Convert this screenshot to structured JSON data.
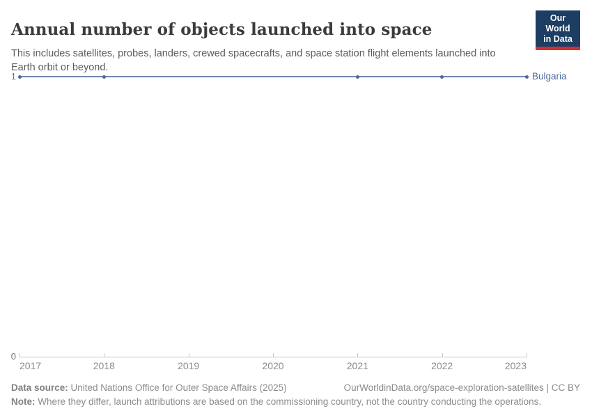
{
  "header": {
    "title": "Annual number of objects launched into space",
    "subtitle": "This includes satellites, probes, landers, crewed spacecrafts, and space station flight elements launched into Earth orbit or beyond.",
    "logo": {
      "line1": "Our World",
      "line2": "in Data"
    }
  },
  "chart_data": {
    "type": "line",
    "title": "Annual number of objects launched into space",
    "xlabel": "",
    "ylabel": "",
    "xlim": [
      2017,
      2023
    ],
    "ylim": [
      0,
      1
    ],
    "grid": false,
    "legend_position": "right-of-line-end",
    "x_ticks": [
      "2017",
      "2018",
      "2019",
      "2020",
      "2021",
      "2022",
      "2023"
    ],
    "y_ticks": [
      {
        "label": "0",
        "value": 0
      },
      {
        "label": "1",
        "value": 1
      }
    ],
    "series": [
      {
        "name": "Bulgaria",
        "color": "#4c6a9c",
        "line_color": "#7187ad",
        "line_span_years": [
          2017,
          2023
        ],
        "line_value": 1,
        "points": [
          {
            "x": 2017,
            "y": 1
          },
          {
            "x": 2018,
            "y": 1
          },
          {
            "x": 2021,
            "y": 1
          },
          {
            "x": 2022,
            "y": 1
          },
          {
            "x": 2023,
            "y": 1
          }
        ]
      }
    ]
  },
  "footer": {
    "datasource_label": "Data source:",
    "datasource_text": " United Nations Office for Outer Space Affairs (2025)",
    "attribution": "OurWorldinData.org/space-exploration-satellites | CC BY",
    "note_label": "Note:",
    "note_text": " Where they differ, launch attributions are based on the commissioning country, not the country conducting the operations."
  },
  "colors": {
    "accent": "#4c6a9c",
    "line": "#7187ad",
    "axis": "#c6c6c6",
    "logo_navy": "#1d3d63",
    "logo_red": "#d3302f"
  }
}
